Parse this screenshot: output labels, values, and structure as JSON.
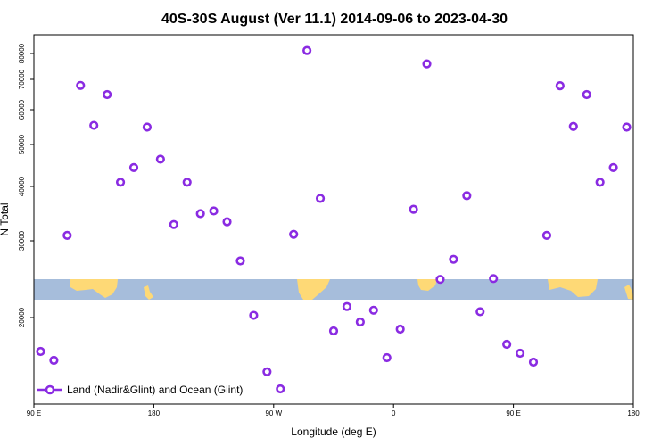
{
  "chart_data": {
    "type": "scatter",
    "title": "40S-30S August (Ver 11.1)   2014-09-06 to 2023-04-30",
    "xlabel": "Longitude (deg E)",
    "ylabel": "N Total",
    "x_ticks": [
      {
        "value": 90,
        "label": "90 E"
      },
      {
        "value": 180,
        "label": "180"
      },
      {
        "value": 270,
        "label": "90 W"
      },
      {
        "value": 360,
        "label": "0"
      },
      {
        "value": 450,
        "label": "90 E"
      },
      {
        "value": 540,
        "label": "180"
      }
    ],
    "y_ticks_upper": [
      {
        "value": 30000,
        "label": "30000"
      },
      {
        "value": 40000,
        "label": "40000"
      },
      {
        "value": 50000,
        "label": "50000"
      },
      {
        "value": 60000,
        "label": "60000"
      },
      {
        "value": 70000,
        "label": "70000"
      },
      {
        "value": 80000,
        "label": "80000"
      }
    ],
    "y_ticks_lower": [
      {
        "value": 20000,
        "label": "20000"
      }
    ],
    "xlim": [
      90,
      540
    ],
    "colors": {
      "series": "#8a2be2",
      "ocean": "#a6bddb",
      "land": "#fed976"
    },
    "series": [
      {
        "name": "Land (Nadir&Glint) and Ocean (Glint)",
        "x": [
          95,
          105,
          115,
          125,
          135,
          145,
          155,
          165,
          175,
          185,
          195,
          205,
          215,
          225,
          235,
          245,
          255,
          265,
          275,
          285,
          295,
          305,
          315,
          325,
          335,
          345,
          355,
          365,
          375,
          385,
          395,
          405,
          415,
          425,
          435,
          445,
          455,
          465,
          475,
          485,
          495,
          505,
          515,
          525,
          535
        ],
        "y": [
          16200,
          15200,
          31000,
          68000,
          55500,
          65000,
          41000,
          44500,
          55000,
          46500,
          33000,
          41000,
          35000,
          35500,
          33500,
          27500,
          20300,
          14100,
          12500,
          31200,
          81300,
          37800,
          18500,
          21500,
          19500,
          21000,
          15500,
          18700,
          35800,
          76000,
          25200,
          27700,
          38300,
          20800,
          25300,
          17000,
          16000,
          15000,
          31000,
          67900,
          55200,
          65000,
          41000,
          44500,
          55000
        ]
      }
    ],
    "legend": "bottom-left"
  }
}
